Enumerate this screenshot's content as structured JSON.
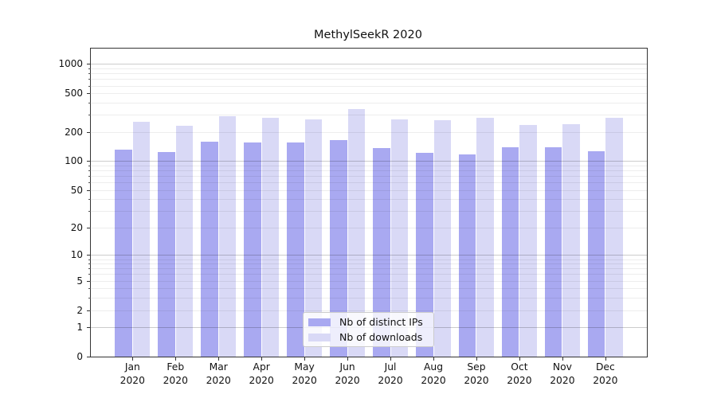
{
  "chart_data": {
    "type": "bar",
    "title": "MethylSeekR 2020",
    "xlabel": "",
    "ylabel": "",
    "yscale": "log1p",
    "ylim": [
      0,
      1450
    ],
    "grid": true,
    "legend_position": "lower center",
    "categories": [
      "Jan 2020",
      "Feb 2020",
      "Mar 2020",
      "Apr 2020",
      "May 2020",
      "Jun 2020",
      "Jul 2020",
      "Aug 2020",
      "Sep 2020",
      "Oct 2020",
      "Nov 2020",
      "Dec 2020"
    ],
    "y_ticks": [
      0,
      1,
      2,
      5,
      10,
      20,
      50,
      100,
      200,
      500,
      1000
    ],
    "series": [
      {
        "name": "Nb of distinct IPs",
        "color": "#a9a9f1",
        "values": [
          132,
          124,
          158,
          156,
          157,
          165,
          137,
          123,
          117,
          140,
          139,
          126
        ]
      },
      {
        "name": "Nb of downloads",
        "color": "#d9d9f6",
        "values": [
          255,
          232,
          293,
          282,
          271,
          345,
          270,
          265,
          280,
          237,
          241,
          281
        ]
      }
    ]
  },
  "legend": {
    "items": [
      {
        "label": "Nb of distinct IPs",
        "color": "#a9a9f1"
      },
      {
        "label": "Nb of downloads",
        "color": "#d9d9f6"
      }
    ]
  },
  "colors": {
    "spine": "#333333",
    "background": "#ffffff",
    "grid_major": "rgba(0,0,0,0.20)",
    "grid_minor": "rgba(0,0,0,0.07)"
  }
}
